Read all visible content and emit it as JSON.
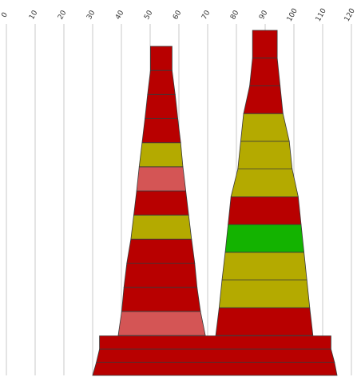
{
  "chart_data": {
    "type": "bar",
    "orientation": "horizontal",
    "stacking": "funnel",
    "grid": true,
    "legend": "none",
    "xlim": [
      0,
      120
    ],
    "x_ticks": [
      0,
      10,
      20,
      30,
      40,
      50,
      60,
      70,
      80,
      90,
      100,
      110,
      120
    ],
    "colors": {
      "dark_red": "#b80000",
      "olive": "#b4aa00",
      "light_red": "#d45555",
      "green": "#13b300",
      "grid": "#c8c8c8",
      "edge": "#3a3a3a"
    },
    "base": [
      {
        "left": 30,
        "right": 115,
        "color": "dark_red"
      },
      {
        "left": 31.3,
        "right": 114.1,
        "color": "dark_red"
      },
      {
        "left": 32.4,
        "right": 112.9,
        "color": "dark_red"
      }
    ],
    "cones": [
      {
        "name": "",
        "segments": [
          {
            "left": 38.9,
            "right": 69.2,
            "color": "light_red"
          },
          {
            "left": 40.1,
            "right": 67.5,
            "color": "dark_red"
          },
          {
            "left": 40.9,
            "right": 66.3,
            "color": "dark_red"
          },
          {
            "left": 41.9,
            "right": 65.5,
            "color": "dark_red"
          },
          {
            "left": 43.3,
            "right": 64.4,
            "color": "olive"
          },
          {
            "left": 44.3,
            "right": 63.4,
            "color": "dark_red"
          },
          {
            "left": 45.3,
            "right": 62.4,
            "color": "light_red"
          },
          {
            "left": 46.2,
            "right": 61.4,
            "color": "olive"
          },
          {
            "left": 47.2,
            "right": 60.6,
            "color": "dark_red"
          },
          {
            "left": 48.2,
            "right": 59.6,
            "color": "dark_red"
          },
          {
            "left": 49.1,
            "right": 58.7,
            "color": "dark_red"
          },
          {
            "left": 50.1,
            "right": 57.6,
            "color": "dark_red"
          }
        ]
      },
      {
        "name": "",
        "segments": [
          {
            "left": 72.8,
            "right": 106.6,
            "color": "dark_red"
          },
          {
            "left": 74,
            "right": 105.5,
            "color": "olive"
          },
          {
            "left": 75,
            "right": 104.5,
            "color": "olive"
          },
          {
            "left": 76.1,
            "right": 103.5,
            "color": "green"
          },
          {
            "left": 77.1,
            "right": 102.5,
            "color": "dark_red"
          },
          {
            "left": 78.1,
            "right": 101.5,
            "color": "olive"
          },
          {
            "left": 80.5,
            "right": 99.4,
            "color": "olive"
          },
          {
            "left": 81.5,
            "right": 98.4,
            "color": "olive"
          },
          {
            "left": 82.5,
            "right": 96.2,
            "color": "dark_red"
          },
          {
            "left": 84.6,
            "right": 95.2,
            "color": "dark_red"
          },
          {
            "left": 85.6,
            "right": 94.2,
            "color": "dark_red"
          }
        ]
      }
    ]
  }
}
